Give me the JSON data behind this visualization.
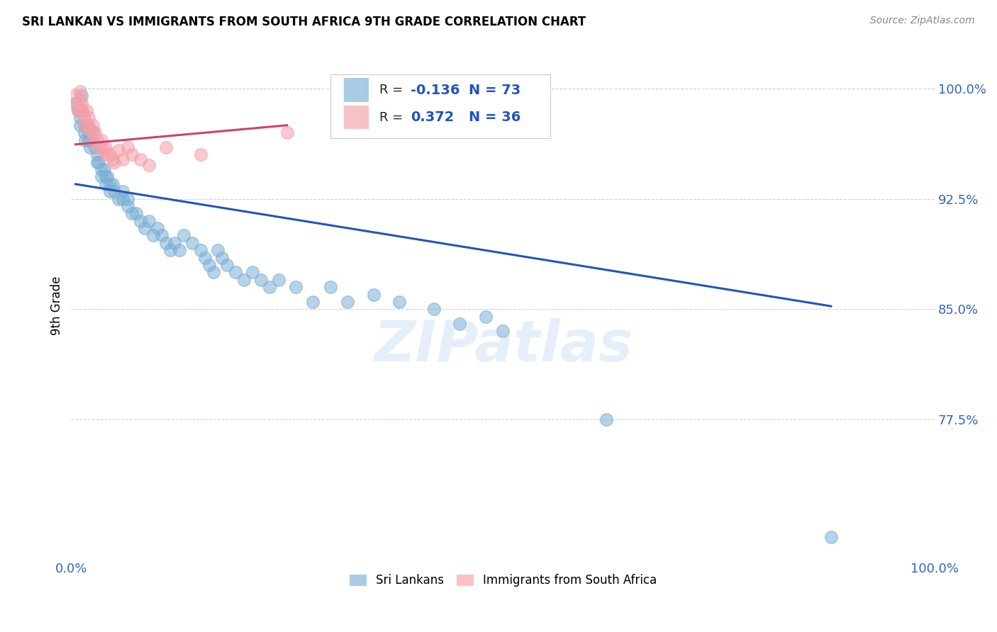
{
  "title": "SRI LANKAN VS IMMIGRANTS FROM SOUTH AFRICA 9TH GRADE CORRELATION CHART",
  "source": "Source: ZipAtlas.com",
  "ylabel": "9th Grade",
  "xlim": [
    0.0,
    1.0
  ],
  "ylim": [
    0.68,
    1.025
  ],
  "yticks": [
    0.775,
    0.85,
    0.925,
    1.0
  ],
  "ytick_labels": [
    "77.5%",
    "85.0%",
    "92.5%",
    "100.0%"
  ],
  "xtick_positions": [
    0.0,
    0.25,
    0.5,
    0.75,
    1.0
  ],
  "xtick_labels": [
    "0.0%",
    "",
    "",
    "",
    "100.0%"
  ],
  "blue_R": -0.136,
  "blue_N": 73,
  "pink_R": 0.372,
  "pink_N": 36,
  "blue_color": "#7BAFD4",
  "pink_color": "#F4A0A8",
  "blue_line_color": "#2255BB",
  "pink_line_color": "#CC4466",
  "watermark": "ZIPatlas",
  "blue_scatter_x": [
    0.005,
    0.008,
    0.01,
    0.01,
    0.012,
    0.012,
    0.015,
    0.015,
    0.016,
    0.018,
    0.02,
    0.02,
    0.022,
    0.025,
    0.025,
    0.028,
    0.03,
    0.03,
    0.032,
    0.035,
    0.035,
    0.038,
    0.04,
    0.04,
    0.042,
    0.045,
    0.045,
    0.048,
    0.05,
    0.055,
    0.06,
    0.06,
    0.065,
    0.065,
    0.07,
    0.075,
    0.08,
    0.085,
    0.09,
    0.095,
    0.1,
    0.105,
    0.11,
    0.115,
    0.12,
    0.125,
    0.13,
    0.14,
    0.15,
    0.155,
    0.16,
    0.165,
    0.17,
    0.175,
    0.18,
    0.19,
    0.2,
    0.21,
    0.22,
    0.23,
    0.24,
    0.26,
    0.28,
    0.3,
    0.32,
    0.35,
    0.38,
    0.42,
    0.45,
    0.48,
    0.5,
    0.62,
    0.88
  ],
  "blue_scatter_y": [
    0.99,
    0.985,
    0.98,
    0.975,
    0.995,
    0.985,
    0.975,
    0.97,
    0.965,
    0.975,
    0.97,
    0.965,
    0.96,
    0.97,
    0.965,
    0.96,
    0.955,
    0.95,
    0.95,
    0.945,
    0.94,
    0.945,
    0.94,
    0.935,
    0.94,
    0.935,
    0.93,
    0.935,
    0.93,
    0.925,
    0.93,
    0.925,
    0.925,
    0.92,
    0.915,
    0.915,
    0.91,
    0.905,
    0.91,
    0.9,
    0.905,
    0.9,
    0.895,
    0.89,
    0.895,
    0.89,
    0.9,
    0.895,
    0.89,
    0.885,
    0.88,
    0.875,
    0.89,
    0.885,
    0.88,
    0.875,
    0.87,
    0.875,
    0.87,
    0.865,
    0.87,
    0.865,
    0.855,
    0.865,
    0.855,
    0.86,
    0.855,
    0.85,
    0.84,
    0.845,
    0.835,
    0.775,
    0.695
  ],
  "pink_scatter_x": [
    0.005,
    0.007,
    0.008,
    0.01,
    0.01,
    0.01,
    0.012,
    0.013,
    0.015,
    0.015,
    0.018,
    0.02,
    0.02,
    0.022,
    0.025,
    0.025,
    0.025,
    0.028,
    0.03,
    0.032,
    0.035,
    0.038,
    0.04,
    0.04,
    0.045,
    0.048,
    0.05,
    0.055,
    0.06,
    0.065,
    0.07,
    0.08,
    0.09,
    0.11,
    0.15,
    0.25
  ],
  "pink_scatter_y": [
    0.995,
    0.99,
    0.985,
    0.998,
    0.992,
    0.986,
    0.99,
    0.985,
    0.98,
    0.975,
    0.985,
    0.98,
    0.975,
    0.972,
    0.975,
    0.97,
    0.965,
    0.97,
    0.965,
    0.96,
    0.965,
    0.958,
    0.96,
    0.955,
    0.955,
    0.952,
    0.95,
    0.958,
    0.952,
    0.96,
    0.955,
    0.952,
    0.948,
    0.96,
    0.955,
    0.97
  ],
  "blue_line_x": [
    0.005,
    0.88
  ],
  "blue_line_y_start": 0.935,
  "blue_line_y_end": 0.852,
  "pink_line_x": [
    0.005,
    0.25
  ],
  "pink_line_y_start": 0.962,
  "pink_line_y_end": 0.975
}
